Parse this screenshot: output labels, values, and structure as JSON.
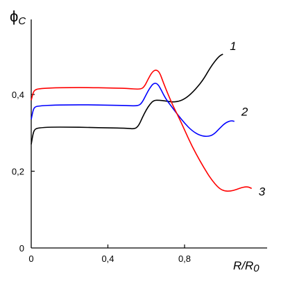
{
  "chart_data": {
    "type": "line",
    "title": "",
    "ylabel_main": "ϕ",
    "ylabel_sub": "C",
    "xlabel_main": "R/R",
    "xlabel_sub": "0",
    "xlim": [
      0,
      1.2
    ],
    "ylim": [
      0,
      0.6
    ],
    "x_ticks": [
      {
        "value": 0,
        "label": "0"
      },
      {
        "value": 0.4,
        "label": "0,4"
      },
      {
        "value": 0.8,
        "label": "0,8"
      }
    ],
    "y_ticks": [
      {
        "value": 0,
        "label": "0"
      },
      {
        "value": 0.2,
        "label": "0,2"
      },
      {
        "value": 0.4,
        "label": "0,4"
      }
    ],
    "grid": false,
    "series": [
      {
        "name": "1",
        "color": "#000000",
        "x": [
          0,
          0.01,
          0.02,
          0.04,
          0.1,
          0.2,
          0.3,
          0.4,
          0.5,
          0.54,
          0.56,
          0.58,
          0.6,
          0.62,
          0.64,
          0.67,
          0.7,
          0.74,
          0.78,
          0.82,
          0.86,
          0.9,
          0.94,
          0.98,
          1.0
        ],
        "y": [
          0.27,
          0.3,
          0.31,
          0.313,
          0.315,
          0.315,
          0.314,
          0.313,
          0.312,
          0.31,
          0.318,
          0.34,
          0.36,
          0.375,
          0.385,
          0.385,
          0.383,
          0.38,
          0.383,
          0.395,
          0.415,
          0.44,
          0.475,
          0.5,
          0.505
        ]
      },
      {
        "name": "2",
        "color": "#0000ff",
        "x": [
          0,
          0.01,
          0.02,
          0.04,
          0.1,
          0.2,
          0.3,
          0.4,
          0.5,
          0.56,
          0.58,
          0.6,
          0.62,
          0.64,
          0.66,
          0.68,
          0.7,
          0.73,
          0.76,
          0.8,
          0.84,
          0.88,
          0.92,
          0.95,
          0.98,
          1.01,
          1.04,
          1.06
        ],
        "y": [
          0.335,
          0.36,
          0.368,
          0.37,
          0.372,
          0.373,
          0.373,
          0.372,
          0.371,
          0.37,
          0.38,
          0.4,
          0.418,
          0.43,
          0.428,
          0.41,
          0.39,
          0.37,
          0.35,
          0.325,
          0.305,
          0.293,
          0.29,
          0.295,
          0.31,
          0.325,
          0.332,
          0.33
        ]
      },
      {
        "name": "3",
        "color": "#ff0000",
        "x": [
          0,
          0.01,
          0.02,
          0.04,
          0.1,
          0.2,
          0.3,
          0.4,
          0.5,
          0.57,
          0.59,
          0.61,
          0.63,
          0.65,
          0.67,
          0.69,
          0.71,
          0.74,
          0.78,
          0.82,
          0.86,
          0.9,
          0.94,
          0.98,
          1.01,
          1.04,
          1.07,
          1.1,
          1.13,
          1.15
        ],
        "y": [
          0.385,
          0.405,
          0.412,
          0.415,
          0.417,
          0.418,
          0.418,
          0.417,
          0.416,
          0.413,
          0.42,
          0.44,
          0.458,
          0.465,
          0.458,
          0.43,
          0.405,
          0.37,
          0.33,
          0.285,
          0.245,
          0.21,
          0.178,
          0.155,
          0.148,
          0.148,
          0.152,
          0.158,
          0.16,
          0.155
        ]
      }
    ]
  }
}
